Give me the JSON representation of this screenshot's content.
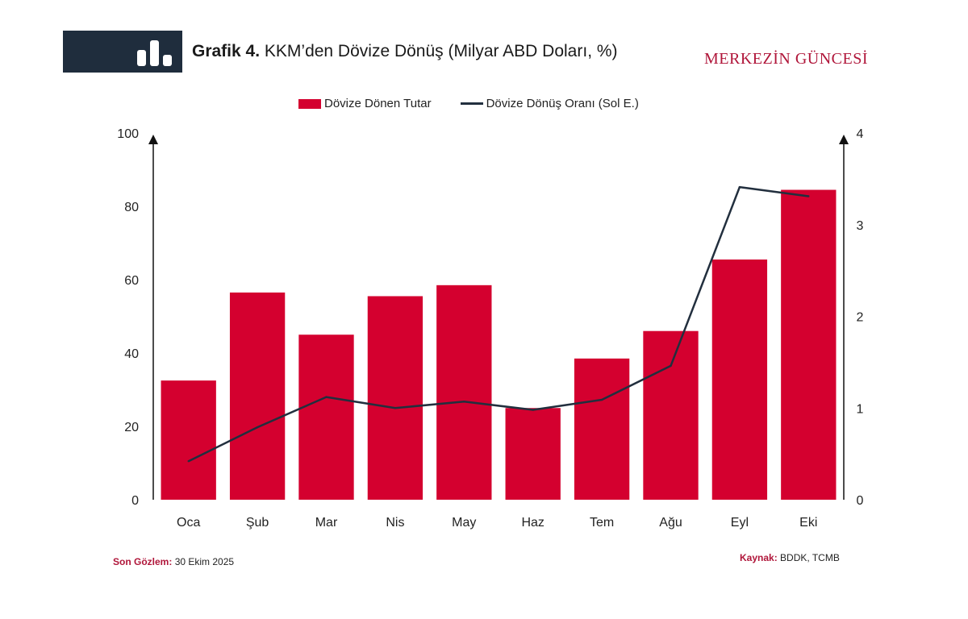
{
  "header": {
    "title_bold": "Grafik 4.",
    "title_rest": "KKM’den Dövize Dönüş (Milyar ABD Doları, %)",
    "brand": "MERKEZİN GÜNCESİ",
    "icon": "bar-chart-icon"
  },
  "footer": {
    "left_label": "Son Gözlem:",
    "left_value": "30 Ekim 2025",
    "right_label": "Kaynak:",
    "right_value": "BDDK, TCMB"
  },
  "colors": {
    "bar": "#d4002f",
    "line": "#222f3e",
    "header_bg": "#1f2d3d",
    "accent": "#b0163a"
  },
  "chart_data": {
    "type": "bar",
    "categories": [
      "Oca",
      "Şub",
      "Mar",
      "Nis",
      "May",
      "Haz",
      "Tem",
      "Ağu",
      "Eyl",
      "Eki"
    ],
    "series": [
      {
        "name": "Dövize Dönen Tutar",
        "type": "bar",
        "axis": "left",
        "values": [
          32.5,
          56.5,
          45,
          55.5,
          58.5,
          25,
          38.5,
          46,
          65.5,
          84.5
        ]
      },
      {
        "name": "Dövize Dönüş Oranı (Sol E.)",
        "type": "line",
        "axis": "right",
        "values": [
          0.42,
          0.79,
          1.12,
          1.0,
          1.07,
          0.98,
          1.09,
          1.46,
          3.41,
          3.31
        ]
      }
    ],
    "y_left": {
      "min": 0,
      "max": 100,
      "ticks": [
        0,
        20,
        40,
        60,
        80,
        100
      ]
    },
    "y_right": {
      "min": 0,
      "max": 4,
      "ticks": [
        0,
        1,
        2,
        3,
        4
      ]
    },
    "legend_position": "top-center",
    "grid": false
  }
}
